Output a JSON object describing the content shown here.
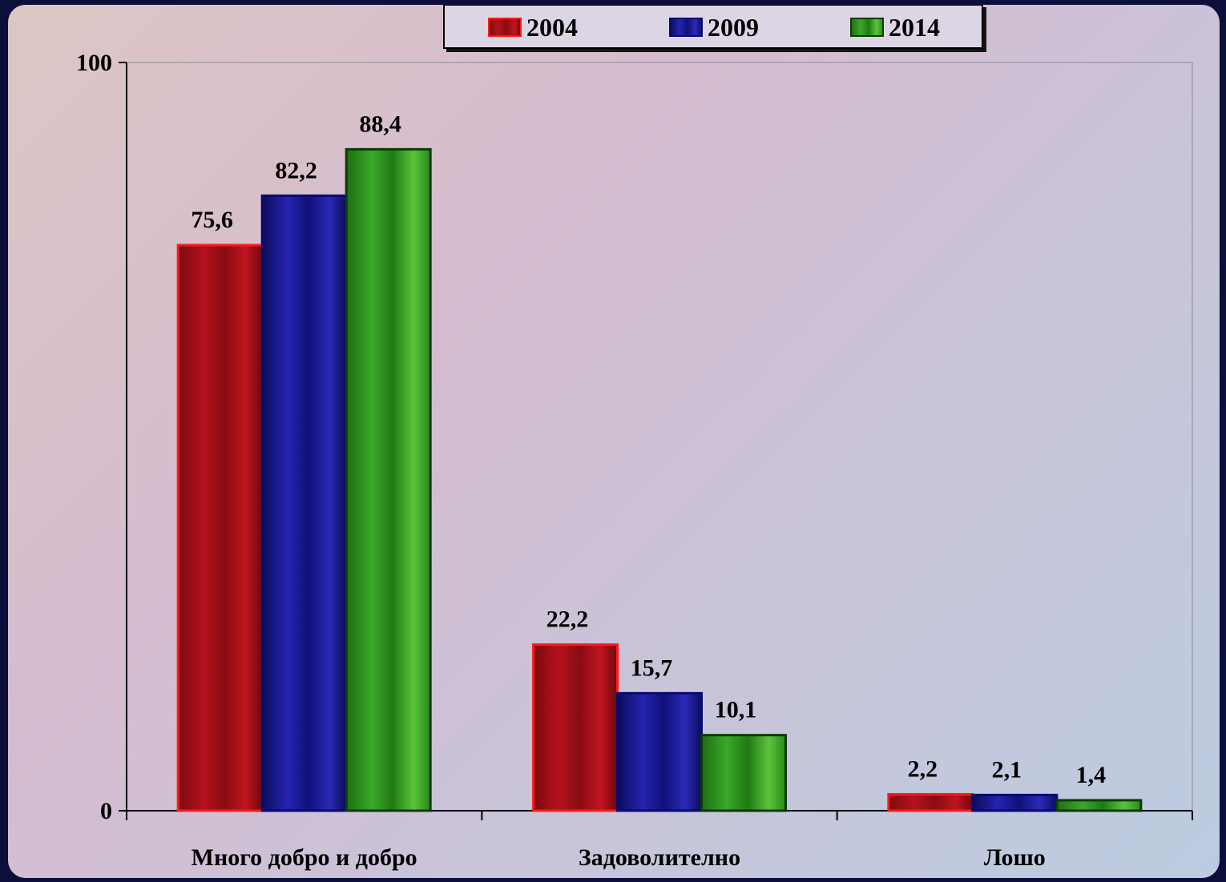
{
  "chart_data": {
    "type": "bar",
    "categories": [
      "Много добро и добро",
      "Задоволително",
      "Лошо"
    ],
    "series": [
      {
        "name": "2004",
        "values": [
          75.6,
          22.2,
          2.2
        ],
        "value_labels": [
          "75,6",
          "22,2",
          "2,2"
        ],
        "color": "#b01018",
        "border": "#ff1a1a"
      },
      {
        "name": "2009",
        "values": [
          82.2,
          15.7,
          2.1
        ],
        "value_labels": [
          "82,2",
          "15,7",
          "2,1"
        ],
        "color": "#1a1a9a",
        "border": "#0a0a70"
      },
      {
        "name": "2014",
        "values": [
          88.4,
          10.1,
          1.4
        ],
        "value_labels": [
          "88,4",
          "10,1",
          "1,4"
        ],
        "color": "#2e9a1e",
        "border": "#0d3a08"
      }
    ],
    "ylim": [
      0,
      100
    ],
    "yticks": [
      "0",
      "100"
    ],
    "grid": false,
    "legend_position": "top-center"
  }
}
